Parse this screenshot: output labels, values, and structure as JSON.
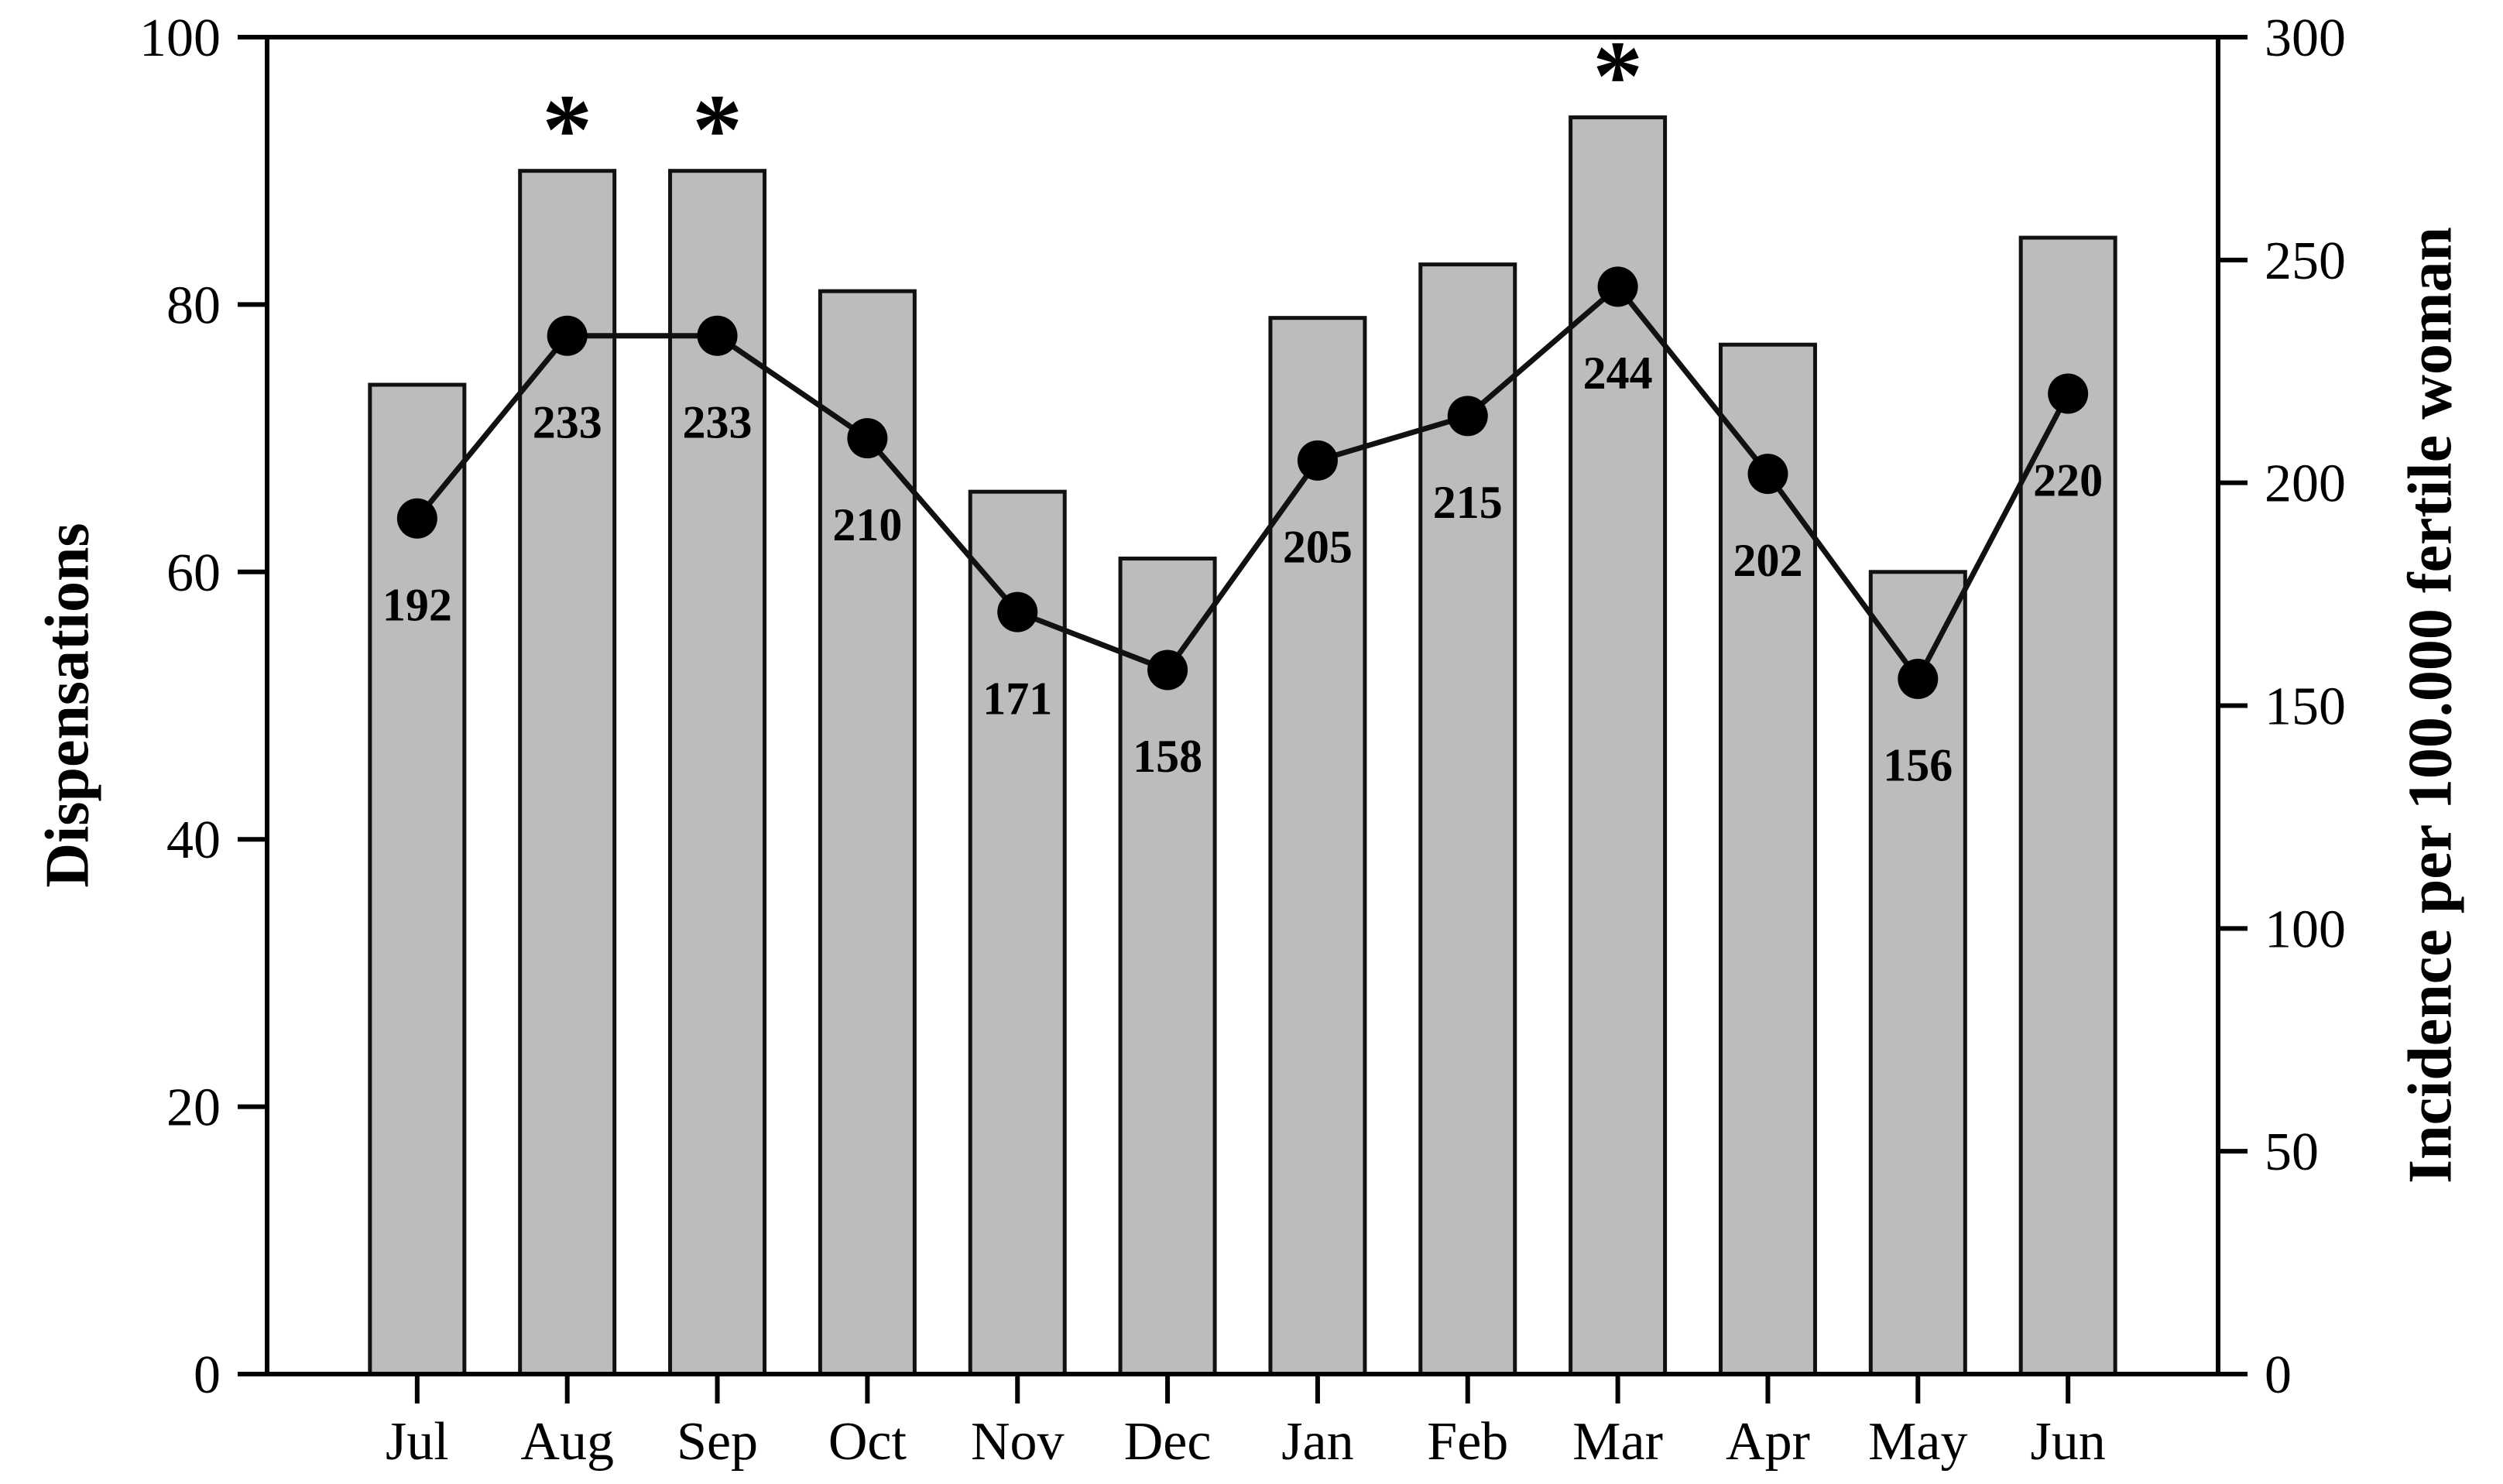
{
  "figure": {
    "significance_symbol": "*"
  },
  "chart_data": {
    "type": "bar",
    "subtype": "bar-with-line-overlay",
    "title": "",
    "grid": false,
    "legend": false,
    "categories": [
      "Jul",
      "Aug",
      "Sep",
      "Oct",
      "Nov",
      "Dec",
      "Jan",
      "Feb",
      "Mar",
      "Apr",
      "May",
      "Jun"
    ],
    "series": [
      {
        "name": "Dispensations",
        "type": "bar",
        "axis": "left",
        "values": [
          74,
          90,
          90,
          81,
          66,
          61,
          79,
          83,
          94,
          77,
          60,
          85
        ]
      },
      {
        "name": "Incidence per 100.000 fertile woman",
        "type": "line",
        "axis": "right",
        "values": [
          192,
          233,
          233,
          210,
          171,
          158,
          205,
          215,
          244,
          202,
          156,
          220
        ],
        "data_labels": [
          "192",
          "233",
          "233",
          "210",
          "171",
          "158",
          "205",
          "215",
          "244",
          "202",
          "156",
          "220"
        ],
        "marker": "filled-circle"
      }
    ],
    "starred_categories": [
      "Aug",
      "Sep",
      "Mar"
    ],
    "left_axis": {
      "label": "Dispensations",
      "min": 0,
      "max": 100,
      "tick_step": 20,
      "ticks": [
        0,
        20,
        40,
        60,
        80,
        100
      ]
    },
    "right_axis": {
      "label": "Incidence per 100.000 fertile woman",
      "min": 0,
      "max": 300,
      "tick_step": 50,
      "ticks": [
        0,
        50,
        100,
        150,
        200,
        250,
        300
      ]
    },
    "colors": {
      "bar_fill": "#bcbcbc",
      "bar_border": "#111111",
      "line": "#111111",
      "marker": "#000000",
      "text": "#000000",
      "frame": "#000000"
    }
  }
}
